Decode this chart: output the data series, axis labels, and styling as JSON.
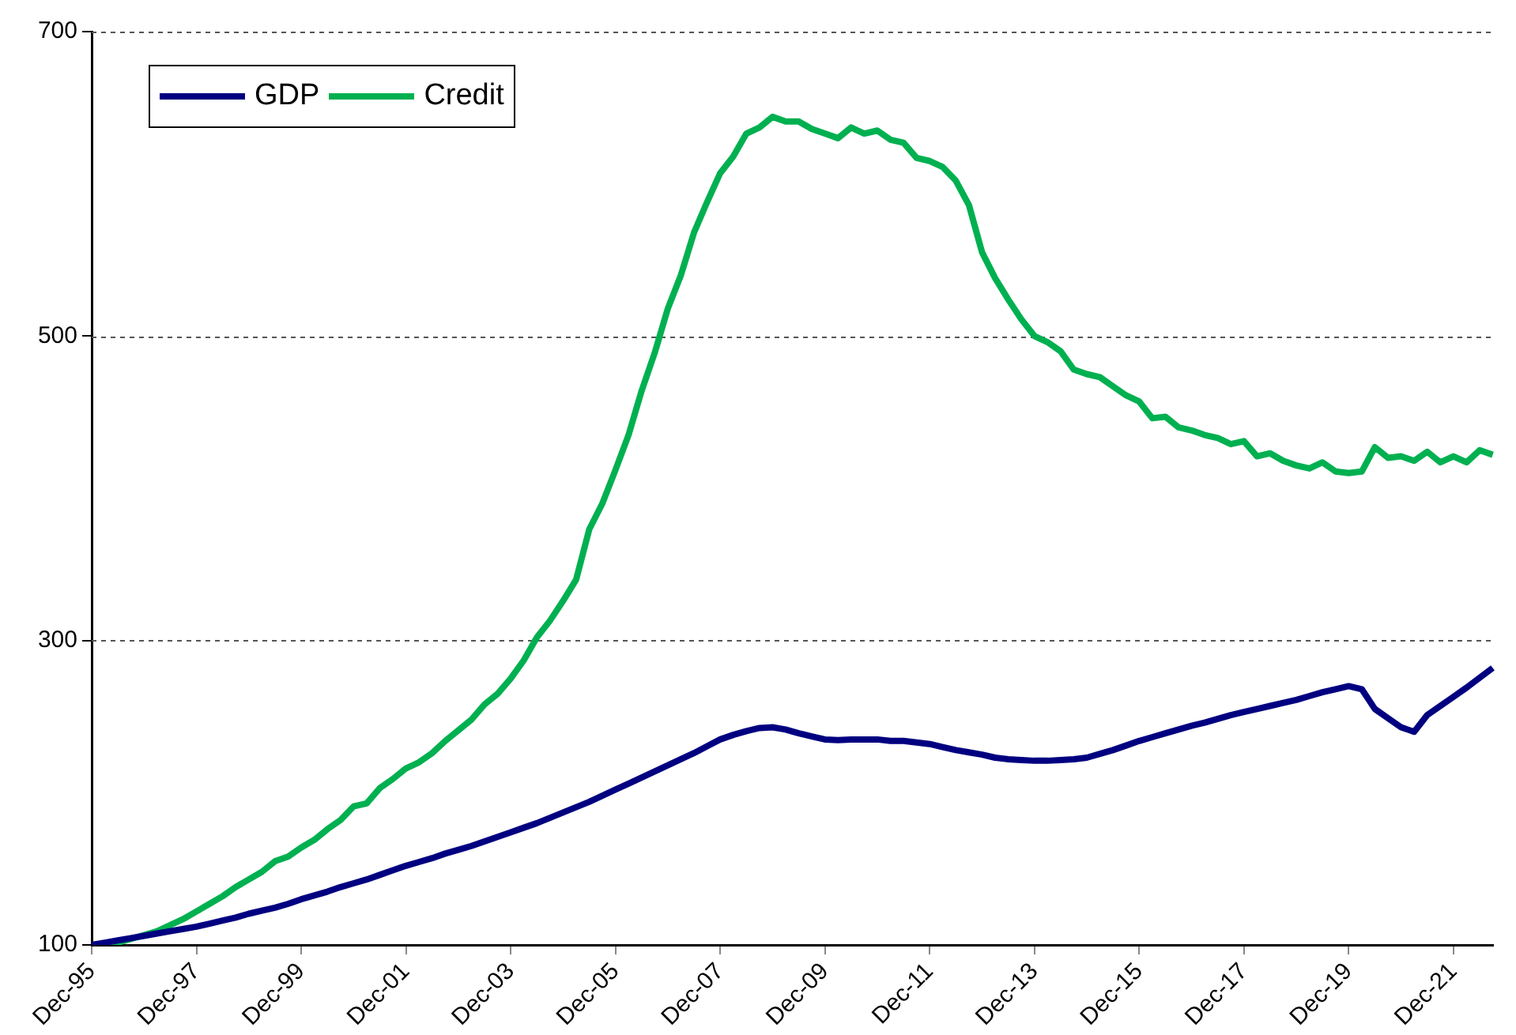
{
  "chart_data": {
    "type": "line",
    "categories": [
      "Dec-95",
      null,
      null,
      null,
      null,
      null,
      null,
      null,
      "Dec-97",
      null,
      null,
      null,
      null,
      null,
      null,
      null,
      "Dec-99",
      null,
      null,
      null,
      null,
      null,
      null,
      null,
      "Dec-01",
      null,
      null,
      null,
      null,
      null,
      null,
      null,
      "Dec-03",
      null,
      null,
      null,
      null,
      null,
      null,
      null,
      "Dec-05",
      null,
      null,
      null,
      null,
      null,
      null,
      null,
      "Dec-07",
      null,
      null,
      null,
      null,
      null,
      null,
      null,
      "Dec-09",
      null,
      null,
      null,
      null,
      null,
      null,
      null,
      "Dec-11",
      null,
      null,
      null,
      null,
      null,
      null,
      null,
      "Dec-13",
      null,
      null,
      null,
      null,
      null,
      null,
      null,
      "Dec-15",
      null,
      null,
      null,
      null,
      null,
      null,
      null,
      "Dec-17",
      null,
      null,
      null,
      null,
      null,
      null,
      null,
      "Dec-19",
      null,
      null,
      null,
      null,
      null,
      null,
      null,
      "Dec-21",
      null,
      null,
      null
    ],
    "series": [
      {
        "name": "GDP",
        "color": "#000080",
        "values": [
          100,
          101.5,
          103,
          104.5,
          106,
          107.5,
          109,
          110.5,
          112,
          114,
          116,
          118,
          120.5,
          122.5,
          124.5,
          127,
          130,
          132.5,
          135,
          138,
          140.5,
          143,
          146,
          149,
          152,
          154.5,
          157,
          160,
          162.5,
          165,
          168,
          171,
          174,
          177,
          180,
          183.5,
          187,
          190.5,
          194,
          198,
          202,
          206,
          210,
          214,
          218,
          222,
          226,
          230.5,
          235,
          238,
          240.5,
          242.5,
          243,
          241.5,
          239,
          237,
          235,
          234.5,
          235,
          235,
          235,
          234,
          234,
          233,
          232,
          230,
          228,
          226.5,
          225,
          223,
          222,
          221.5,
          221,
          221,
          221.5,
          222,
          223,
          225.5,
          228,
          231,
          234,
          236.5,
          239,
          241.5,
          244,
          246,
          248.5,
          251,
          253,
          255,
          257,
          259,
          261,
          263.5,
          266,
          268,
          270,
          268,
          255,
          249,
          243,
          240,
          251,
          257,
          263,
          269,
          275.5,
          282
        ]
      },
      {
        "name": "Credit",
        "color": "#00b050",
        "values": [
          100,
          100,
          101.5,
          104,
          106.5,
          109,
          113,
          117,
          122,
          127,
          132,
          138,
          143,
          148,
          155,
          158,
          164,
          169,
          176,
          182,
          191,
          193,
          203,
          209,
          216,
          220,
          226,
          234,
          241,
          248,
          258,
          265,
          275,
          287,
          302,
          313,
          326,
          340,
          373,
          390,
          412,
          435,
          464,
          489,
          518,
          540,
          568,
          588,
          607,
          618,
          633,
          637,
          644,
          641,
          641,
          636,
          633,
          630,
          637,
          633,
          635,
          629,
          627,
          617,
          615,
          611,
          602,
          586,
          555,
          538,
          524,
          511,
          500,
          496,
          490,
          478,
          475,
          473,
          467,
          461,
          457,
          446,
          447,
          440,
          438,
          435,
          433,
          429,
          431,
          421,
          423,
          418,
          415,
          413,
          417,
          411,
          410,
          411,
          427,
          420,
          421,
          418,
          424,
          417,
          421,
          417,
          425,
          422
        ]
      }
    ],
    "ylim": [
      100,
      700
    ],
    "yticks": [
      100,
      300,
      500,
      700
    ],
    "grid": "y",
    "legend": "top left"
  }
}
